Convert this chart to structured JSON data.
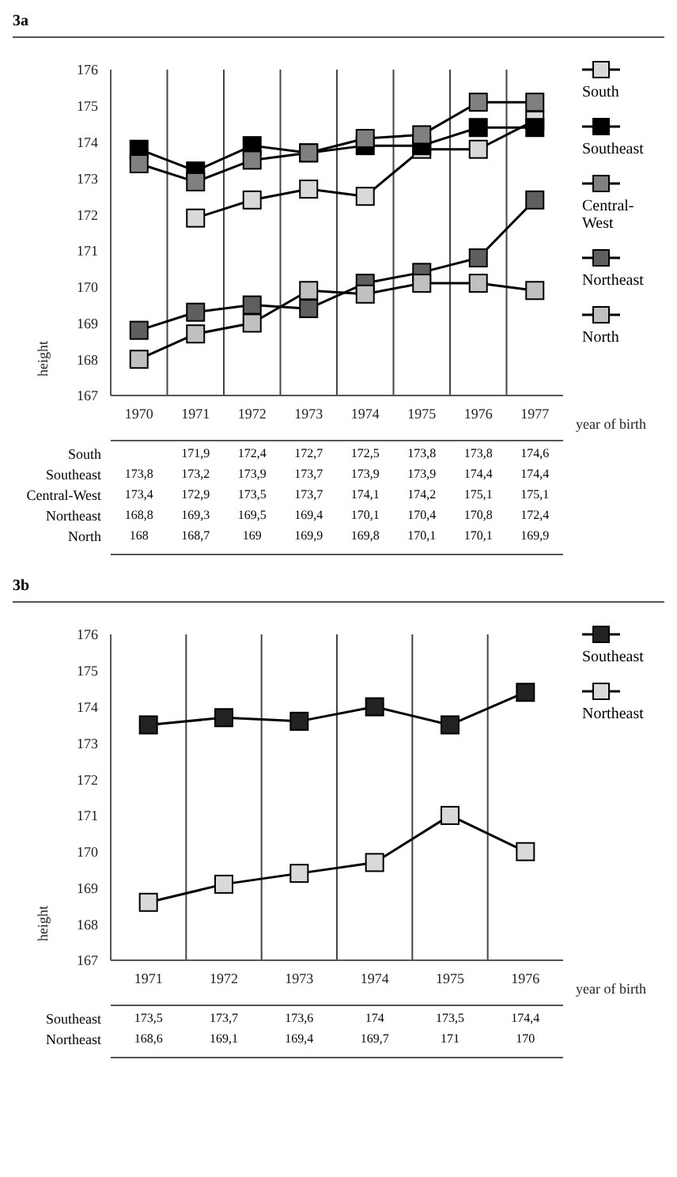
{
  "chart_data": [
    {
      "type": "line",
      "title": "3a",
      "xlabel": "year of birth",
      "ylabel": "height",
      "categories": [
        "1970",
        "1971",
        "1972",
        "1973",
        "1974",
        "1975",
        "1976",
        "1977"
      ],
      "ylim": [
        167,
        176
      ],
      "yticks": [
        167,
        168,
        169,
        170,
        171,
        172,
        173,
        174,
        175,
        176
      ],
      "grid": "x",
      "legend": "right",
      "marker": "square",
      "line_style": "solid",
      "series": [
        {
          "name": "South",
          "color": "#d9d9d9",
          "values": [
            null,
            171.9,
            172.4,
            172.7,
            172.5,
            173.8,
            173.8,
            174.6
          ],
          "value_labels": [
            null,
            "171,9",
            "172,4",
            "172,7",
            "172,5",
            "173,8",
            "173,8",
            "174,6"
          ]
        },
        {
          "name": "Southeast",
          "color": "#000000",
          "values": [
            173.8,
            173.2,
            173.9,
            173.7,
            173.9,
            173.9,
            174.4,
            174.4
          ],
          "value_labels": [
            "173,8",
            "173,2",
            "173,9",
            "173,7",
            "173,9",
            "173,9",
            "174,4",
            "174,4"
          ]
        },
        {
          "name": "Central-West",
          "color": "#808080",
          "values": [
            173.4,
            172.9,
            173.5,
            173.7,
            174.1,
            174.2,
            175.1,
            175.1
          ],
          "value_labels": [
            "173,4",
            "172,9",
            "173,5",
            "173,7",
            "174,1",
            "174,2",
            "175,1",
            "175,1"
          ]
        },
        {
          "name": "Northeast",
          "color": "#5f5f5f",
          "values": [
            168.8,
            169.3,
            169.5,
            169.4,
            170.1,
            170.4,
            170.8,
            172.4
          ],
          "value_labels": [
            "168,8",
            "169,3",
            "169,5",
            "169,4",
            "170,1",
            "170,4",
            "170,8",
            "172,4"
          ]
        },
        {
          "name": "North",
          "color": "#c0c0c0",
          "values": [
            168,
            168.7,
            169,
            169.9,
            169.8,
            170.1,
            170.1,
            169.9
          ],
          "value_labels": [
            "168",
            "168,7",
            "169",
            "169,9",
            "169,8",
            "170,1",
            "170,1",
            "169,9"
          ]
        }
      ]
    },
    {
      "type": "line",
      "title": "3b",
      "xlabel": "year of birth",
      "ylabel": "height",
      "categories": [
        "1971",
        "1972",
        "1973",
        "1974",
        "1975",
        "1976"
      ],
      "ylim": [
        167,
        176
      ],
      "yticks": [
        167,
        168,
        169,
        170,
        171,
        172,
        173,
        174,
        175,
        176
      ],
      "grid": "x",
      "legend": "right",
      "marker": "square",
      "line_style": "solid",
      "series": [
        {
          "name": "Southeast",
          "color": "#222222",
          "values": [
            173.5,
            173.7,
            173.6,
            174,
            173.5,
            174.4
          ],
          "value_labels": [
            "173,5",
            "173,7",
            "173,6",
            "174",
            "173,5",
            "174,4"
          ]
        },
        {
          "name": "Northeast",
          "color": "#d9d9d9",
          "values": [
            168.6,
            169.1,
            169.4,
            169.7,
            171,
            170
          ],
          "value_labels": [
            "168,6",
            "169,1",
            "169,4",
            "169,7",
            "171",
            "170"
          ]
        }
      ]
    }
  ]
}
